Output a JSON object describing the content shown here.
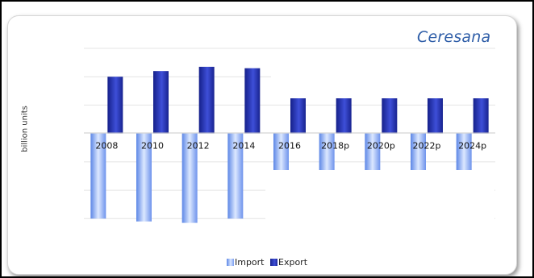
{
  "brand": "Ceresana",
  "chart_data": {
    "type": "bar",
    "categories": [
      "2008",
      "2010",
      "2012",
      "2014",
      "2016",
      "2018p",
      "2020p",
      "2022p",
      "2024p"
    ],
    "ylabel": "billion units",
    "series": [
      {
        "name": "Import",
        "values": [
          -3.0,
          -3.1,
          -3.15,
          -3.0,
          -1.3,
          -1.3,
          -1.3,
          -1.3,
          -1.3
        ]
      },
      {
        "name": "Export",
        "values": [
          2.0,
          2.2,
          2.35,
          2.3,
          1.3,
          1.3,
          1.3,
          1.3,
          1.3
        ]
      }
    ],
    "ylim": [
      -3.9,
      3.0
    ],
    "grid": true,
    "legend": "bottom-center"
  },
  "colors": {
    "import": "#8fb0f5",
    "export": "#2635b8",
    "brand": "#2f5ea8"
  }
}
